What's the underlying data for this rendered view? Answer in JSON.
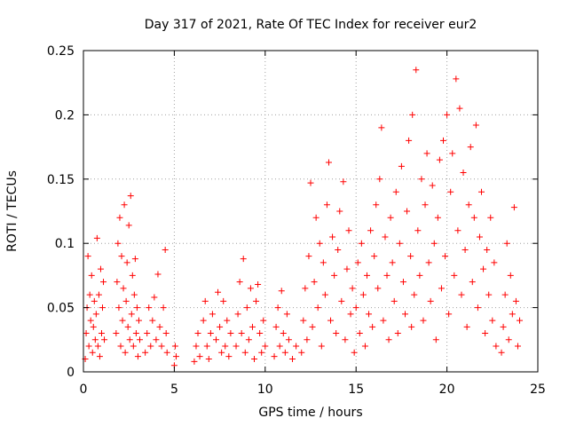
{
  "chart_data": {
    "type": "scatter",
    "title": "Day 317 of 2021, Rate Of TEC Index for receiver eur2",
    "xlabel": "GPS time / hours",
    "ylabel": "ROTI / TECUs",
    "xlim": [
      0,
      25
    ],
    "ylim": [
      0,
      0.25
    ],
    "xticks": [
      0,
      5,
      10,
      15,
      20,
      25
    ],
    "xtick_labels": [
      "0",
      "5",
      "10",
      "15",
      "20",
      "25"
    ],
    "yticks": [
      0,
      0.05,
      0.1,
      0.15,
      0.2,
      0.25
    ],
    "ytick_labels": [
      "0",
      "0.05",
      "0.1",
      "0.15",
      "0.2",
      "0.25"
    ],
    "grid": true,
    "marker": "+",
    "color": "#ff0000",
    "series": [
      {
        "points": [
          [
            0.1,
            0.01
          ],
          [
            0.15,
            0.03
          ],
          [
            0.2,
            0.05
          ],
          [
            0.25,
            0.09
          ],
          [
            0.3,
            0.02
          ],
          [
            0.35,
            0.06
          ],
          [
            0.4,
            0.04
          ],
          [
            0.45,
            0.075
          ],
          [
            0.5,
            0.015
          ],
          [
            0.55,
            0.035
          ],
          [
            0.6,
            0.055
          ],
          [
            0.65,
            0.025
          ],
          [
            0.7,
            0.045
          ],
          [
            0.75,
            0.104
          ],
          [
            0.8,
            0.02
          ],
          [
            0.85,
            0.06
          ],
          [
            0.9,
            0.012
          ],
          [
            0.95,
            0.08
          ],
          [
            1.0,
            0.03
          ],
          [
            1.05,
            0.05
          ],
          [
            1.1,
            0.07
          ],
          [
            1.15,
            0.025
          ],
          [
            1.8,
            0.03
          ],
          [
            1.85,
            0.07
          ],
          [
            1.9,
            0.1
          ],
          [
            1.95,
            0.05
          ],
          [
            2.0,
            0.12
          ],
          [
            2.05,
            0.02
          ],
          [
            2.1,
            0.09
          ],
          [
            2.15,
            0.04
          ],
          [
            2.2,
            0.065
          ],
          [
            2.25,
            0.13
          ],
          [
            2.3,
            0.015
          ],
          [
            2.35,
            0.055
          ],
          [
            2.4,
            0.085
          ],
          [
            2.45,
            0.035
          ],
          [
            2.5,
            0.114
          ],
          [
            2.55,
            0.025
          ],
          [
            2.6,
            0.137
          ],
          [
            2.65,
            0.045
          ],
          [
            2.7,
            0.075
          ],
          [
            2.75,
            0.02
          ],
          [
            2.8,
            0.06
          ],
          [
            2.85,
            0.088
          ],
          [
            2.9,
            0.03
          ],
          [
            2.95,
            0.05
          ],
          [
            3.0,
            0.012
          ],
          [
            3.05,
            0.04
          ],
          [
            3.1,
            0.025
          ],
          [
            3.4,
            0.015
          ],
          [
            3.5,
            0.03
          ],
          [
            3.6,
            0.05
          ],
          [
            3.7,
            0.02
          ],
          [
            3.8,
            0.04
          ],
          [
            3.9,
            0.058
          ],
          [
            4.0,
            0.025
          ],
          [
            4.1,
            0.076
          ],
          [
            4.2,
            0.035
          ],
          [
            4.3,
            0.02
          ],
          [
            4.4,
            0.05
          ],
          [
            4.5,
            0.095
          ],
          [
            4.55,
            0.03
          ],
          [
            4.6,
            0.015
          ],
          [
            5.0,
            0.005
          ],
          [
            5.05,
            0.02
          ],
          [
            5.1,
            0.012
          ],
          [
            6.1,
            0.008
          ],
          [
            6.2,
            0.02
          ],
          [
            6.3,
            0.03
          ],
          [
            6.4,
            0.012
          ],
          [
            6.6,
            0.04
          ],
          [
            6.7,
            0.055
          ],
          [
            6.8,
            0.02
          ],
          [
            6.9,
            0.01
          ],
          [
            7.0,
            0.03
          ],
          [
            7.1,
            0.045
          ],
          [
            7.3,
            0.025
          ],
          [
            7.4,
            0.062
          ],
          [
            7.5,
            0.035
          ],
          [
            7.6,
            0.015
          ],
          [
            7.7,
            0.055
          ],
          [
            7.8,
            0.02
          ],
          [
            7.9,
            0.04
          ],
          [
            8.0,
            0.012
          ],
          [
            8.1,
            0.03
          ],
          [
            8.4,
            0.02
          ],
          [
            8.5,
            0.045
          ],
          [
            8.6,
            0.07
          ],
          [
            8.7,
            0.03
          ],
          [
            8.8,
            0.088
          ],
          [
            8.9,
            0.015
          ],
          [
            9.0,
            0.05
          ],
          [
            9.1,
            0.025
          ],
          [
            9.2,
            0.065
          ],
          [
            9.3,
            0.035
          ],
          [
            9.4,
            0.01
          ],
          [
            9.5,
            0.055
          ],
          [
            9.6,
            0.068
          ],
          [
            9.7,
            0.03
          ],
          [
            9.8,
            0.015
          ],
          [
            9.9,
            0.04
          ],
          [
            10.0,
            0.02
          ],
          [
            10.5,
            0.012
          ],
          [
            10.6,
            0.035
          ],
          [
            10.7,
            0.05
          ],
          [
            10.8,
            0.02
          ],
          [
            10.9,
            0.063
          ],
          [
            11.0,
            0.03
          ],
          [
            11.1,
            0.015
          ],
          [
            11.2,
            0.045
          ],
          [
            11.3,
            0.025
          ],
          [
            11.5,
            0.01
          ],
          [
            11.7,
            0.02
          ],
          [
            12.0,
            0.015
          ],
          [
            12.1,
            0.04
          ],
          [
            12.2,
            0.065
          ],
          [
            12.3,
            0.025
          ],
          [
            12.4,
            0.09
          ],
          [
            12.5,
            0.147
          ],
          [
            12.6,
            0.035
          ],
          [
            12.7,
            0.07
          ],
          [
            12.8,
            0.12
          ],
          [
            12.9,
            0.05
          ],
          [
            13.0,
            0.1
          ],
          [
            13.1,
            0.02
          ],
          [
            13.2,
            0.085
          ],
          [
            13.3,
            0.06
          ],
          [
            13.4,
            0.13
          ],
          [
            13.5,
            0.163
          ],
          [
            13.6,
            0.04
          ],
          [
            13.7,
            0.105
          ],
          [
            13.8,
            0.075
          ],
          [
            13.9,
            0.03
          ],
          [
            14.0,
            0.095
          ],
          [
            14.1,
            0.125
          ],
          [
            14.2,
            0.055
          ],
          [
            14.3,
            0.148
          ],
          [
            14.4,
            0.025
          ],
          [
            14.5,
            0.08
          ],
          [
            14.6,
            0.11
          ],
          [
            14.7,
            0.045
          ],
          [
            14.8,
            0.065
          ],
          [
            14.9,
            0.015
          ],
          [
            15.0,
            0.05
          ],
          [
            15.1,
            0.085
          ],
          [
            15.2,
            0.03
          ],
          [
            15.3,
            0.1
          ],
          [
            15.4,
            0.06
          ],
          [
            15.5,
            0.02
          ],
          [
            15.6,
            0.075
          ],
          [
            15.7,
            0.045
          ],
          [
            15.8,
            0.11
          ],
          [
            15.9,
            0.035
          ],
          [
            16.0,
            0.09
          ],
          [
            16.1,
            0.13
          ],
          [
            16.2,
            0.065
          ],
          [
            16.3,
            0.15
          ],
          [
            16.4,
            0.19
          ],
          [
            16.5,
            0.04
          ],
          [
            16.6,
            0.105
          ],
          [
            16.7,
            0.075
          ],
          [
            16.8,
            0.025
          ],
          [
            16.9,
            0.12
          ],
          [
            17.0,
            0.085
          ],
          [
            17.1,
            0.055
          ],
          [
            17.2,
            0.14
          ],
          [
            17.3,
            0.03
          ],
          [
            17.4,
            0.1
          ],
          [
            17.5,
            0.16
          ],
          [
            17.6,
            0.07
          ],
          [
            17.7,
            0.045
          ],
          [
            17.8,
            0.125
          ],
          [
            17.9,
            0.18
          ],
          [
            18.0,
            0.09
          ],
          [
            18.05,
            0.035
          ],
          [
            18.1,
            0.2
          ],
          [
            18.2,
            0.06
          ],
          [
            18.3,
            0.235
          ],
          [
            18.4,
            0.11
          ],
          [
            18.5,
            0.075
          ],
          [
            18.6,
            0.15
          ],
          [
            18.7,
            0.04
          ],
          [
            18.8,
            0.13
          ],
          [
            18.9,
            0.17
          ],
          [
            19.0,
            0.085
          ],
          [
            19.1,
            0.055
          ],
          [
            19.2,
            0.145
          ],
          [
            19.3,
            0.1
          ],
          [
            19.4,
            0.025
          ],
          [
            19.5,
            0.12
          ],
          [
            19.6,
            0.165
          ],
          [
            19.7,
            0.065
          ],
          [
            19.8,
            0.18
          ],
          [
            19.9,
            0.09
          ],
          [
            20.0,
            0.2
          ],
          [
            20.1,
            0.045
          ],
          [
            20.2,
            0.14
          ],
          [
            20.3,
            0.17
          ],
          [
            20.4,
            0.075
          ],
          [
            20.5,
            0.228
          ],
          [
            20.6,
            0.11
          ],
          [
            20.7,
            0.205
          ],
          [
            20.8,
            0.06
          ],
          [
            20.9,
            0.155
          ],
          [
            21.0,
            0.095
          ],
          [
            21.1,
            0.035
          ],
          [
            21.2,
            0.13
          ],
          [
            21.3,
            0.175
          ],
          [
            21.4,
            0.07
          ],
          [
            21.5,
            0.12
          ],
          [
            21.6,
            0.192
          ],
          [
            21.7,
            0.05
          ],
          [
            21.8,
            0.105
          ],
          [
            21.9,
            0.14
          ],
          [
            22.0,
            0.08
          ],
          [
            22.1,
            0.03
          ],
          [
            22.2,
            0.095
          ],
          [
            22.3,
            0.06
          ],
          [
            22.4,
            0.12
          ],
          [
            22.5,
            0.04
          ],
          [
            22.6,
            0.085
          ],
          [
            22.7,
            0.02
          ],
          [
            23.0,
            0.015
          ],
          [
            23.1,
            0.035
          ],
          [
            23.2,
            0.06
          ],
          [
            23.3,
            0.1
          ],
          [
            23.4,
            0.025
          ],
          [
            23.5,
            0.075
          ],
          [
            23.6,
            0.045
          ],
          [
            23.7,
            0.128
          ],
          [
            23.8,
            0.055
          ],
          [
            23.9,
            0.02
          ],
          [
            24.0,
            0.04
          ]
        ]
      }
    ]
  }
}
